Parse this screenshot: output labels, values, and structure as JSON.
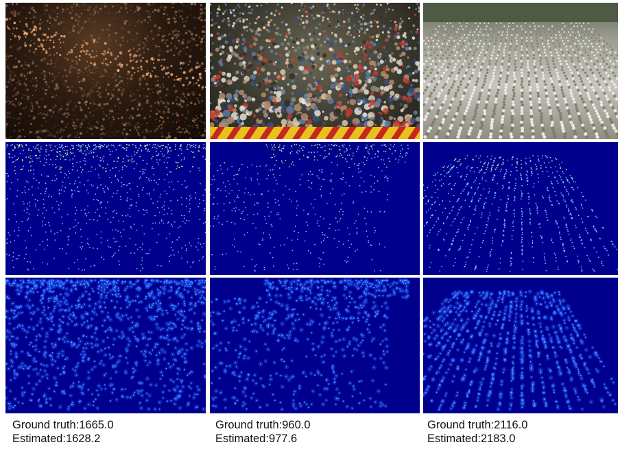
{
  "figure": {
    "rows": [
      "photo",
      "ground-truth-density",
      "estimated-density"
    ],
    "columns": [
      {
        "scene": "concert crowd",
        "ground_truth_label": "Ground truth:1665.0",
        "estimated_label": "Estimated:1628.2",
        "ground_truth": 1665.0,
        "estimated": 1628.2
      },
      {
        "scene": "street crowd",
        "ground_truth_label": "Ground truth:960.0",
        "estimated_label": "Estimated:977.6",
        "ground_truth": 960.0,
        "estimated": 977.6
      },
      {
        "scene": "prayer rows",
        "ground_truth_label": "Ground truth:2116.0",
        "estimated_label": "Estimated:2183.0",
        "ground_truth": 2116.0,
        "estimated": 2183.0
      }
    ],
    "colors": {
      "density_background": "#00008c",
      "density_point": "#7fd9ff",
      "density_point_hot": "#e6ff7a"
    }
  }
}
